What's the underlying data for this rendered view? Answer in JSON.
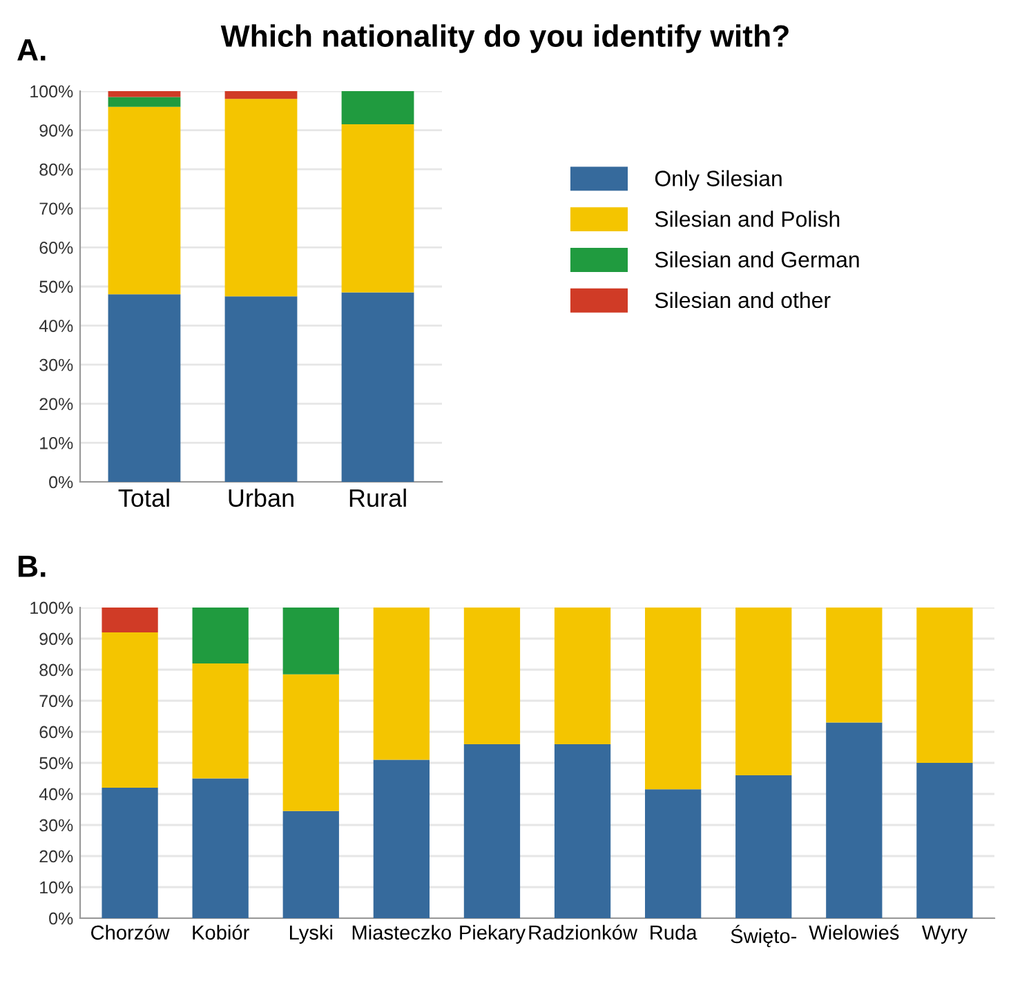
{
  "chart_data": [
    {
      "type": "bar",
      "title": "Which nationality do you identify with?",
      "subtitle": "A.",
      "stacked": true,
      "grid": "y",
      "legend": "right",
      "categories": [
        "Total",
        "Urban",
        "Rural"
      ],
      "ylim": [
        0,
        100
      ],
      "yticks": [
        {
          "value": 0,
          "label": "0%"
        },
        {
          "value": 10,
          "label": "10%"
        },
        {
          "value": 20,
          "label": "20%"
        },
        {
          "value": 30,
          "label": "30%"
        },
        {
          "value": 40,
          "label": "40%"
        },
        {
          "value": 50,
          "label": "50%"
        },
        {
          "value": 60,
          "label": "60%"
        },
        {
          "value": 70,
          "label": "70%"
        },
        {
          "value": 80,
          "label": "80%"
        },
        {
          "value": 90,
          "label": "90%"
        },
        {
          "value": 100,
          "label": "100%"
        }
      ],
      "series": [
        {
          "name": "Only Silesian",
          "color": "#366a9c",
          "values": [
            48,
            47.5,
            48.5
          ]
        },
        {
          "name": "Silesian and Polish",
          "color": "#f4c500",
          "values": [
            48,
            50.5,
            43
          ]
        },
        {
          "name": "Silesian and German",
          "color": "#209b3f",
          "values": [
            2.5,
            null,
            8.5
          ]
        },
        {
          "name": "Silesian and other",
          "color": "#d03b26",
          "values": [
            1.5,
            2,
            null
          ]
        }
      ]
    },
    {
      "type": "bar",
      "subtitle": "B.",
      "stacked": true,
      "grid": "y",
      "categories": [
        "Chorzów",
        "Kobiór",
        "Lyski",
        "Miasteczko",
        "Piekary",
        "Radzionków",
        "Ruda",
        "Święto-",
        "Wielowieś",
        "Wyry"
      ],
      "ylim": [
        0,
        100
      ],
      "yticks": [
        {
          "value": 0,
          "label": "0%"
        },
        {
          "value": 10,
          "label": "10%"
        },
        {
          "value": 20,
          "label": "20%"
        },
        {
          "value": 30,
          "label": "30%"
        },
        {
          "value": 40,
          "label": "40%"
        },
        {
          "value": 50,
          "label": "50%"
        },
        {
          "value": 60,
          "label": "60%"
        },
        {
          "value": 70,
          "label": "70%"
        },
        {
          "value": 80,
          "label": "80%"
        },
        {
          "value": 90,
          "label": "90%"
        },
        {
          "value": 100,
          "label": "100%"
        }
      ],
      "series": [
        {
          "color": "#366a9c",
          "values": [
            42,
            45,
            34.5,
            51,
            56,
            56,
            41.5,
            46,
            63,
            50
          ]
        },
        {
          "color": "#f4c500",
          "values": [
            50,
            37,
            44,
            49,
            44,
            44,
            58.5,
            54,
            37,
            50
          ]
        },
        {
          "color": "#209b3f",
          "values": [
            null,
            18,
            21.5,
            null,
            null,
            null,
            null,
            null,
            null,
            null
          ]
        },
        {
          "color": "#d03b26",
          "values": [
            8,
            null,
            null,
            null,
            null,
            null,
            null,
            null,
            null,
            null
          ]
        }
      ]
    }
  ]
}
